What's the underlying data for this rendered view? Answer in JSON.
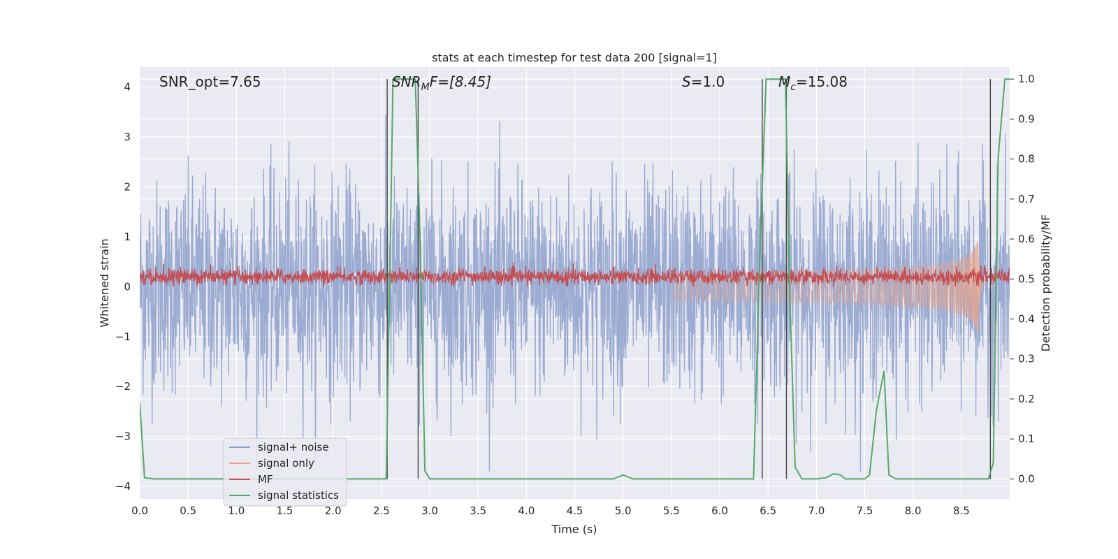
{
  "chart_data": {
    "type": "line",
    "title": "stats at each timestep for test data 200 [signal=1]",
    "xlabel": "Time (s)",
    "ylabel_left": "Whitened strain",
    "ylabel_right": "Detection probability/MF",
    "xlim": [
      0.0,
      9.0
    ],
    "ylim_left": [
      -4.25,
      4.4
    ],
    "ylim_right": [
      -0.05,
      1.03
    ],
    "x_ticks": [
      "0.0",
      "0.5",
      "1.0",
      "1.5",
      "2.0",
      "2.5",
      "3.0",
      "3.5",
      "4.0",
      "4.5",
      "5.0",
      "5.5",
      "6.0",
      "6.5",
      "7.0",
      "7.5",
      "8.0",
      "8.5"
    ],
    "y_left_ticks": [
      "4",
      "3",
      "2",
      "1",
      "0",
      "−1",
      "−2",
      "−3",
      "−4"
    ],
    "y_left_tick_values": [
      4,
      3,
      2,
      1,
      0,
      -1,
      -2,
      -3,
      -4
    ],
    "y_right_ticks": [
      "1.0",
      "0.9",
      "0.8",
      "0.7",
      "0.6",
      "0.5",
      "0.4",
      "0.3",
      "0.2",
      "0.1",
      "0.0"
    ],
    "y_right_tick_values": [
      1.0,
      0.9,
      0.8,
      0.7,
      0.6,
      0.5,
      0.4,
      0.3,
      0.2,
      0.1,
      0.0
    ],
    "grid": true,
    "legend_position": "lower-left",
    "annotations": {
      "snr_opt": "SNR_opt=7.65",
      "snr_mf_base": "SNR",
      "snr_mf_sub": "M",
      "snr_mf_rest": "F=[8.45]",
      "s_base": "S",
      "s_rest": "=1.0",
      "mc_base": "M",
      "mc_sub": "c",
      "mc_rest": "=15.08"
    },
    "series": [
      {
        "name": "signal+ noise",
        "color": "#8da0cb",
        "axis": "left",
        "description_range": [
          -3.7,
          4.0
        ],
        "approx_abs_mean": 1.0
      },
      {
        "name": "signal only",
        "color": "#e8a48a",
        "axis": "left",
        "chirp_start": 5.5,
        "chirp_peak_time": 8.67,
        "chirp_peak_amplitude": 1.1
      },
      {
        "name": "MF",
        "color": "#c44e52",
        "axis": "left",
        "approx_level": [
          0.05,
          0.35
        ]
      },
      {
        "name": "signal statistics",
        "color": "#55a868",
        "axis": "right",
        "x": [
          0.0,
          0.05,
          0.15,
          0.3,
          1.0,
          2.0,
          2.5,
          2.55,
          2.6,
          2.62,
          2.65,
          2.85,
          2.9,
          2.95,
          3.0,
          4.9,
          5.0,
          5.1,
          6.0,
          6.35,
          6.42,
          6.48,
          6.55,
          6.68,
          6.72,
          6.78,
          6.85,
          7.0,
          7.1,
          7.18,
          7.25,
          7.3,
          7.5,
          7.55,
          7.62,
          7.7,
          7.75,
          7.82,
          8.0,
          8.5,
          8.78,
          8.83,
          8.88,
          8.95,
          9.0
        ],
        "y": [
          0.19,
          0.003,
          0.0,
          0.0,
          0.0,
          0.0,
          0.0,
          0.0,
          0.7,
          1.0,
          1.0,
          1.0,
          0.6,
          0.02,
          0.0,
          0.0,
          0.01,
          0.0,
          0.0,
          0.0,
          0.6,
          1.0,
          1.0,
          1.0,
          0.5,
          0.03,
          0.0,
          0.0,
          0.003,
          0.013,
          0.01,
          0.0,
          0.0,
          0.01,
          0.17,
          0.27,
          0.01,
          0.0,
          0.0,
          0.0,
          0.0,
          0.04,
          0.8,
          1.0,
          1.0
        ]
      }
    ],
    "vertical_lines": [
      2.56,
      2.88,
      6.44,
      6.69,
      8.8
    ],
    "legend": [
      {
        "label": "signal+ noise",
        "color": "#8da0cb"
      },
      {
        "label": "signal only",
        "color": "#e8a48a"
      },
      {
        "label": "MF",
        "color": "#c44e52"
      },
      {
        "label": "signal statistics",
        "color": "#55a868"
      }
    ]
  }
}
